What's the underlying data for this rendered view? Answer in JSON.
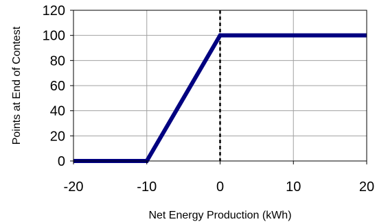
{
  "chart_data": {
    "type": "line",
    "title": "",
    "xlabel": "Net Energy Production (kWh)",
    "ylabel": "Points at End of Contest",
    "xlim": [
      -20,
      20
    ],
    "ylim": [
      0,
      120
    ],
    "x_ticks": [
      "-20",
      "-10",
      "0",
      "10",
      "20"
    ],
    "y_ticks": [
      "0",
      "20",
      "40",
      "60",
      "80",
      "100",
      "120"
    ],
    "grid": true,
    "legend": "none",
    "series": [
      {
        "color": "#000080",
        "x": [
          -20,
          -10,
          0,
          20
        ],
        "y": [
          0,
          0,
          100,
          100
        ]
      }
    ],
    "annotations": [
      {
        "type": "vertical-dashed-line",
        "x": 0,
        "color": "#000000"
      }
    ]
  }
}
